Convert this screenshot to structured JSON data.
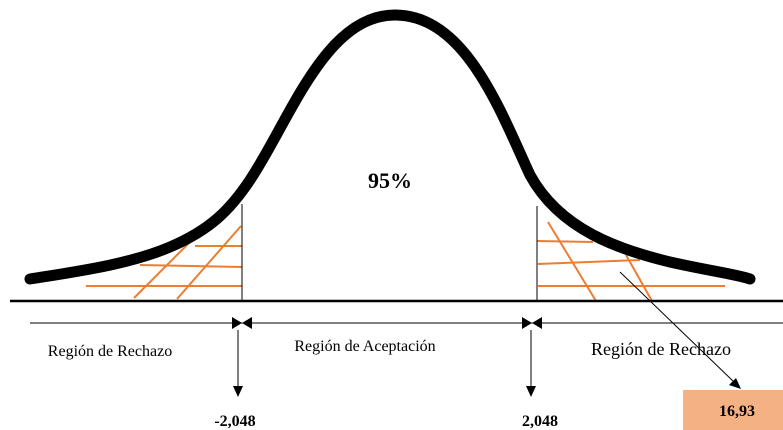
{
  "center_percent": "95%",
  "regions": {
    "left": "Región de Rechazo",
    "center": "Región de Aceptación",
    "right": "Región de Rechazo"
  },
  "critical_values": {
    "left": "-2,048",
    "right": "2,048"
  },
  "test_statistic": "16,93",
  "colors": {
    "curve": "#000000",
    "hatch": "#ED7D31",
    "statistic_box": "#F4B183"
  }
}
